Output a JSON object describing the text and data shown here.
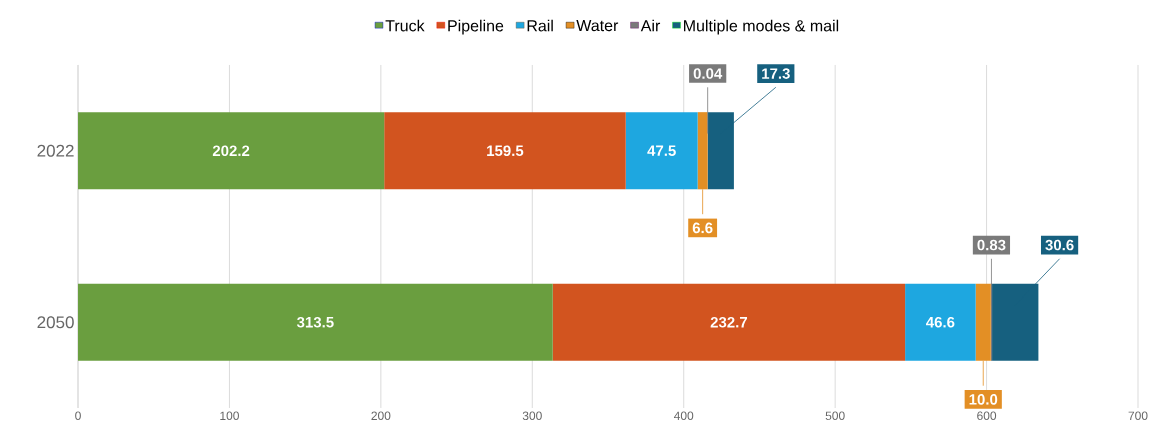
{
  "chart_data": {
    "type": "bar",
    "orientation": "horizontal",
    "stacked": true,
    "categories": [
      "2022",
      "2050"
    ],
    "series": [
      {
        "name": "Truck",
        "color": "#6a9e3f",
        "values": [
          202.2,
          313.5
        ],
        "value_labels": [
          "202.2",
          "313.5"
        ]
      },
      {
        "name": "Pipeline",
        "color": "#d2541f",
        "values": [
          159.5,
          232.7
        ],
        "value_labels": [
          "159.5",
          "232.7"
        ]
      },
      {
        "name": "Rail",
        "color": "#1ea7e0",
        "values": [
          47.5,
          46.6
        ],
        "value_labels": [
          "47.5",
          "46.6"
        ]
      },
      {
        "name": "Water",
        "color": "#e38f25",
        "values": [
          6.6,
          10.0
        ],
        "value_labels": [
          "6.6",
          "10.0"
        ]
      },
      {
        "name": "Air",
        "color": "#7a7a7a",
        "values": [
          0.04,
          0.83
        ],
        "value_labels": [
          "0.04",
          "0.83"
        ]
      },
      {
        "name": "Multiple modes & mail",
        "color": "#16607f",
        "values": [
          17.3,
          30.6
        ],
        "value_labels": [
          "17.3",
          "30.6"
        ]
      }
    ],
    "xlim": [
      0,
      700
    ],
    "xticks": [
      0,
      100,
      200,
      300,
      400,
      500,
      600,
      700
    ],
    "grid": "x",
    "legend": "top"
  }
}
